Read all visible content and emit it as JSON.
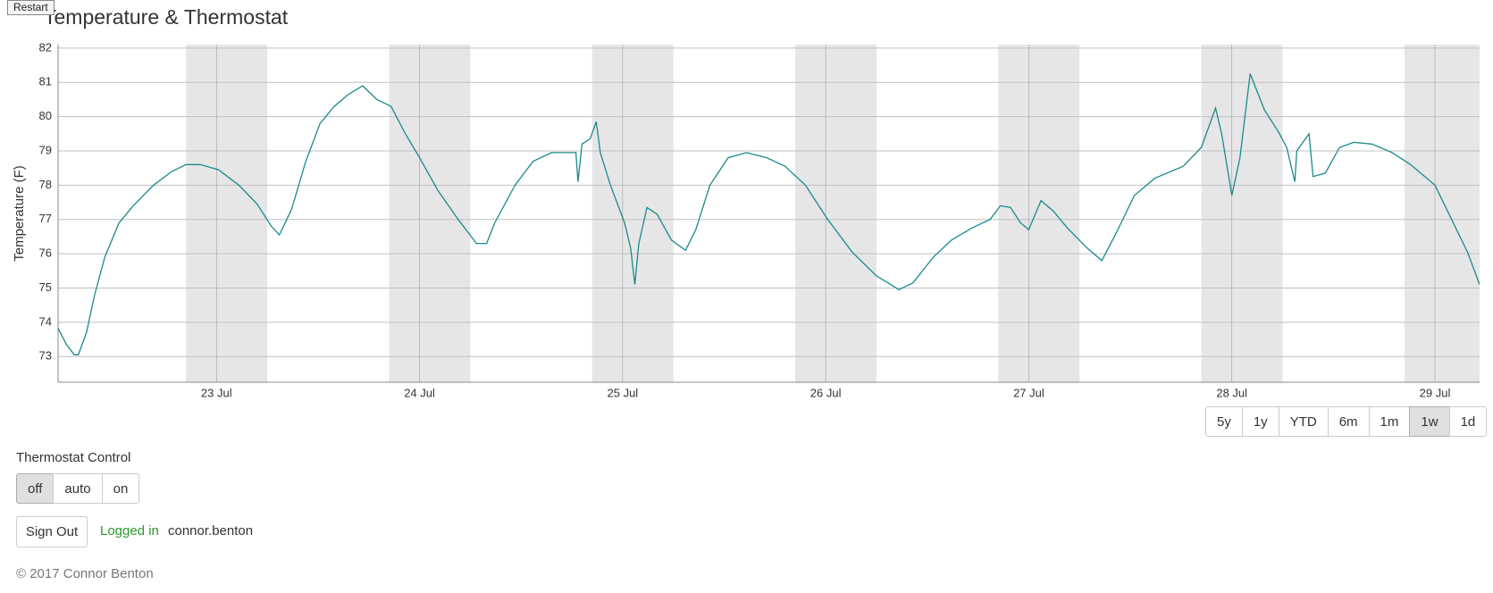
{
  "header": {
    "restart": "Restart",
    "title": "Temperature & Thermostat"
  },
  "chart_data": {
    "type": "line",
    "y_label": "Temperature (F)",
    "color": "#1a8a8a",
    "grid": true,
    "band_color": "#e6e6e6",
    "xlim": [
      22.22,
      29.22
    ],
    "ylim": [
      72.25,
      82.1
    ],
    "yticks": [
      73,
      74,
      75,
      76,
      77,
      78,
      79,
      80,
      81,
      82
    ],
    "xticks": [
      {
        "value": 23,
        "label": "23 Jul"
      },
      {
        "value": 24,
        "label": "24 Jul"
      },
      {
        "value": 25,
        "label": "25 Jul"
      },
      {
        "value": 26,
        "label": "26 Jul"
      },
      {
        "value": 27,
        "label": "27 Jul"
      },
      {
        "value": 28,
        "label": "28 Jul"
      },
      {
        "value": 29,
        "label": "29 Jul"
      }
    ],
    "shaded_bands": [
      [
        22.85,
        23.25
      ],
      [
        23.85,
        24.25
      ],
      [
        24.85,
        25.25
      ],
      [
        25.85,
        26.25
      ],
      [
        26.85,
        27.25
      ],
      [
        27.85,
        28.25
      ],
      [
        28.85,
        29.25
      ]
    ],
    "x": [
      22.22,
      22.26,
      22.3,
      22.32,
      22.36,
      22.4,
      22.45,
      22.52,
      22.59,
      22.69,
      22.78,
      22.85,
      22.92,
      23.01,
      23.11,
      23.2,
      23.27,
      23.31,
      23.37,
      23.44,
      23.51,
      23.58,
      23.65,
      23.72,
      23.79,
      23.86,
      23.93,
      24.0,
      24.09,
      24.19,
      24.28,
      24.33,
      24.37,
      24.47,
      24.56,
      24.65,
      24.77,
      24.78,
      24.8,
      24.84,
      24.87,
      24.89,
      24.94,
      25.01,
      25.04,
      25.06,
      25.08,
      25.12,
      25.17,
      25.24,
      25.31,
      25.36,
      25.43,
      25.52,
      25.61,
      25.71,
      25.8,
      25.9,
      26.01,
      26.13,
      26.25,
      26.32,
      26.36,
      26.43,
      26.53,
      26.62,
      26.72,
      26.81,
      26.86,
      26.91,
      26.96,
      27.0,
      27.06,
      27.12,
      27.19,
      27.29,
      27.36,
      27.43,
      27.52,
      27.62,
      27.76,
      27.85,
      27.92,
      27.95,
      28.0,
      28.04,
      28.09,
      28.16,
      28.23,
      28.27,
      28.31,
      28.32,
      28.38,
      28.4,
      28.46,
      28.53,
      28.6,
      28.69,
      28.79,
      28.88,
      29.0,
      29.07,
      29.16,
      29.22
    ],
    "values": [
      73.83,
      73.36,
      73.05,
      73.05,
      73.7,
      74.8,
      75.9,
      76.9,
      77.4,
      78.0,
      78.4,
      78.6,
      78.6,
      78.45,
      78.0,
      77.45,
      76.8,
      76.55,
      77.3,
      78.7,
      79.8,
      80.3,
      80.65,
      80.9,
      80.5,
      80.3,
      79.5,
      78.8,
      77.85,
      77.0,
      76.3,
      76.3,
      76.9,
      78.0,
      78.7,
      78.95,
      78.95,
      78.1,
      79.2,
      79.35,
      79.85,
      78.95,
      78.0,
      76.9,
      76.15,
      75.1,
      76.3,
      77.35,
      77.15,
      76.4,
      76.1,
      76.7,
      78.0,
      78.8,
      78.95,
      78.8,
      78.55,
      78.0,
      77.0,
      76.05,
      75.35,
      75.1,
      74.95,
      75.15,
      75.9,
      76.4,
      76.75,
      77.0,
      77.4,
      77.35,
      76.9,
      76.7,
      77.55,
      77.25,
      76.75,
      76.15,
      75.8,
      76.6,
      77.7,
      78.2,
      78.55,
      79.1,
      80.25,
      79.5,
      77.7,
      78.8,
      81.25,
      80.2,
      79.55,
      79.1,
      78.1,
      79.0,
      79.5,
      78.25,
      78.35,
      79.1,
      79.25,
      79.2,
      78.95,
      78.6,
      78.0,
      77.15,
      76.05,
      75.1
    ]
  },
  "range_selector": {
    "buttons": [
      "5y",
      "1y",
      "YTD",
      "6m",
      "1m",
      "1w",
      "1d"
    ],
    "active": "1w"
  },
  "thermostat": {
    "label": "Thermostat Control",
    "buttons": [
      "off",
      "auto",
      "on"
    ],
    "active": "off"
  },
  "account": {
    "sign_out": "Sign Out",
    "status": "Logged in",
    "user": "connor.benton"
  },
  "footer": "© 2017 Connor Benton"
}
